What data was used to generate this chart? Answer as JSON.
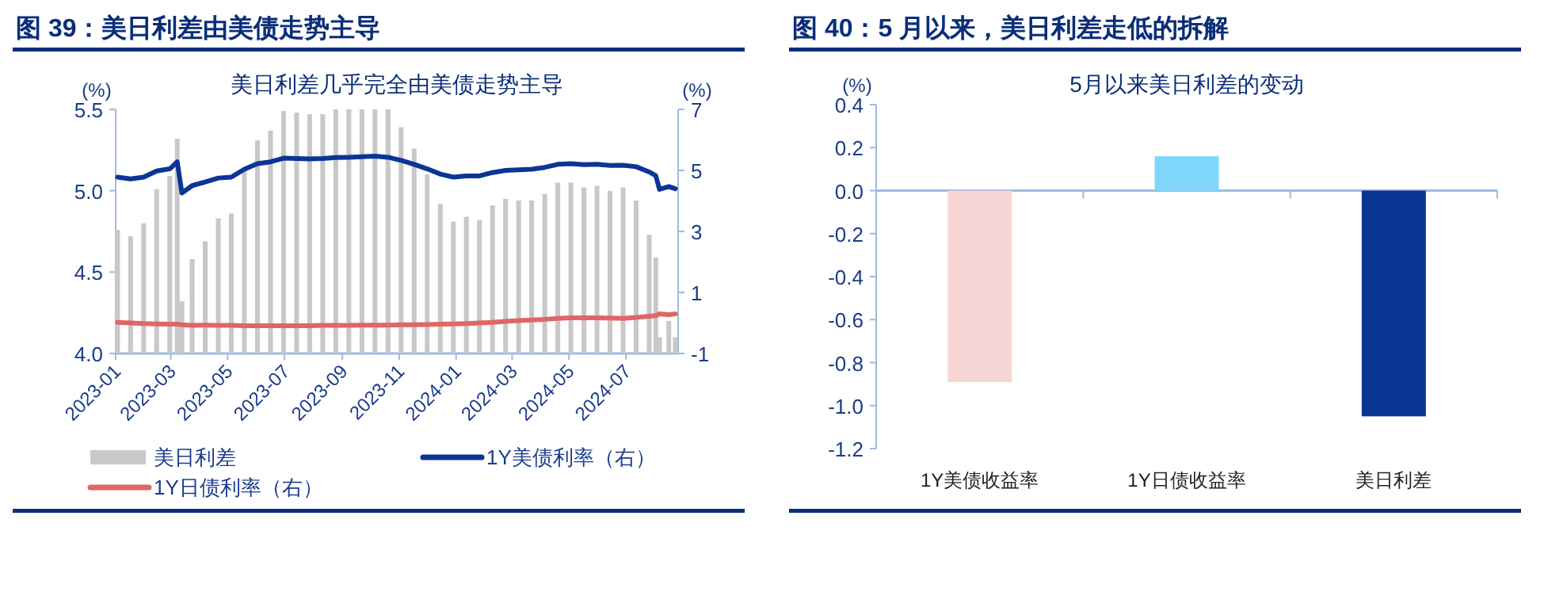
{
  "chart_data": [
    {
      "type": "bar",
      "title": "图 39：美日利差由美债走势主导",
      "subtitle": "美日利差几乎完全由美债走势主导",
      "ylabel": "(%)",
      "y2label": "(%)",
      "legend": "bottom",
      "xlim": [
        "2023-01-01",
        "2024-08-26"
      ],
      "xticks": [
        {
          "value": "2023-01-01",
          "label": "2023-01"
        },
        {
          "value": "2023-03-01",
          "label": "2023-03"
        },
        {
          "value": "2023-05-01",
          "label": "2023-05"
        },
        {
          "value": "2023-07-01",
          "label": "2023-07"
        },
        {
          "value": "2023-09-01",
          "label": "2023-09"
        },
        {
          "value": "2023-11-01",
          "label": "2023-11"
        },
        {
          "value": "2024-01-01",
          "label": "2024-01"
        },
        {
          "value": "2024-03-01",
          "label": "2024-03"
        },
        {
          "value": "2024-05-01",
          "label": "2024-05"
        },
        {
          "value": "2024-07-01",
          "label": "2024-07"
        }
      ],
      "ylim": [
        4.0,
        5.5
      ],
      "yticks": [
        {
          "value": 4.0,
          "label": "4.0"
        },
        {
          "value": 4.5,
          "label": "4.5"
        },
        {
          "value": 5.0,
          "label": "5.0"
        },
        {
          "value": 5.5,
          "label": "5.5"
        }
      ],
      "y2lim": [
        -1,
        7
      ],
      "y2ticks": [
        -1,
        1,
        3,
        5,
        7
      ],
      "x": [
        "2023-01-03",
        "2023-01-17",
        "2023-01-31",
        "2023-02-14",
        "2023-02-28",
        "2023-03-08",
        "2023-03-13",
        "2023-03-24",
        "2023-04-07",
        "2023-04-21",
        "2023-05-05",
        "2023-05-19",
        "2023-06-02",
        "2023-06-16",
        "2023-06-30",
        "2023-07-14",
        "2023-07-28",
        "2023-08-11",
        "2023-08-25",
        "2023-09-08",
        "2023-09-22",
        "2023-10-06",
        "2023-10-20",
        "2023-11-03",
        "2023-11-17",
        "2023-12-01",
        "2023-12-15",
        "2023-12-29",
        "2024-01-12",
        "2024-01-26",
        "2024-02-09",
        "2024-02-23",
        "2024-03-08",
        "2024-03-22",
        "2024-04-05",
        "2024-04-19",
        "2024-05-03",
        "2024-05-17",
        "2024-05-31",
        "2024-06-14",
        "2024-06-28",
        "2024-07-12",
        "2024-07-26",
        "2024-08-02",
        "2024-08-06",
        "2024-08-16",
        "2024-08-23"
      ],
      "series": [
        {
          "name": "美日利差",
          "color": "#c8c8c8",
          "values": [
            4.76,
            4.72,
            4.8,
            5.01,
            5.09,
            5.32,
            4.32,
            4.58,
            4.69,
            4.83,
            4.86,
            5.13,
            5.31,
            5.37,
            5.49,
            5.48,
            5.47,
            5.47,
            5.5,
            5.5,
            5.5,
            5.5,
            5.5,
            5.39,
            5.26,
            5.1,
            4.92,
            4.81,
            4.84,
            4.82,
            4.91,
            4.95,
            4.94,
            4.94,
            4.98,
            5.05,
            5.05,
            5.02,
            5.03,
            5.0,
            5.02,
            4.94,
            4.73,
            4.59,
            4.1,
            4.2,
            4.1
          ]
        },
        {
          "name": "1Y美债利率（右）",
          "type": "line",
          "axis": "y2",
          "color": "#0b3595",
          "values": [
            4.78,
            4.72,
            4.78,
            4.98,
            5.05,
            5.28,
            4.26,
            4.5,
            4.62,
            4.75,
            4.78,
            5.04,
            5.22,
            5.28,
            5.4,
            5.39,
            5.38,
            5.39,
            5.42,
            5.43,
            5.45,
            5.47,
            5.43,
            5.33,
            5.2,
            5.05,
            4.88,
            4.78,
            4.82,
            4.82,
            4.93,
            5.0,
            5.02,
            5.04,
            5.1,
            5.2,
            5.22,
            5.19,
            5.2,
            5.16,
            5.17,
            5.12,
            4.95,
            4.83,
            4.38,
            4.47,
            4.4
          ]
        },
        {
          "name": "1Y日债利率（右）",
          "type": "line",
          "axis": "y2",
          "color": "#e06666",
          "values": [
            0.02,
            0.0,
            -0.02,
            -0.03,
            -0.04,
            -0.04,
            -0.06,
            -0.08,
            -0.07,
            -0.08,
            -0.08,
            -0.09,
            -0.09,
            -0.09,
            -0.09,
            -0.09,
            -0.09,
            -0.08,
            -0.08,
            -0.08,
            -0.07,
            -0.07,
            -0.07,
            -0.06,
            -0.06,
            -0.05,
            -0.04,
            -0.03,
            -0.02,
            0.0,
            0.02,
            0.05,
            0.08,
            0.1,
            0.12,
            0.15,
            0.17,
            0.17,
            0.17,
            0.16,
            0.15,
            0.18,
            0.22,
            0.24,
            0.3,
            0.27,
            0.3
          ]
        }
      ]
    },
    {
      "type": "bar",
      "title": "图 40：5 月以来，美日利差走低的拆解",
      "subtitle": "5月以来美日利差的变动",
      "ylabel": "(%)",
      "categories": [
        "1Y美债收益率",
        "1Y日债收益率",
        "美日利差"
      ],
      "values": [
        -0.89,
        0.16,
        -1.05
      ],
      "ref_lines": [
        {
          "axis": "y",
          "value": 0,
          "color": "#9dbbe3"
        }
      ],
      "colors": [
        "#f6d5d5",
        "#7fd8fc",
        "#0b3595"
      ],
      "ylim": [
        -1.2,
        0.4
      ],
      "yticks": [
        {
          "value": 0.4,
          "label": "0.4"
        },
        {
          "value": 0.2,
          "label": "0.2"
        },
        {
          "value": 0.0,
          "label": "0.0"
        },
        {
          "value": -0.2,
          "label": "-0.2"
        },
        {
          "value": -0.4,
          "label": "-0.4"
        },
        {
          "value": -0.6,
          "label": "-0.6"
        },
        {
          "value": -0.8,
          "label": "-0.8"
        },
        {
          "value": -1.0,
          "label": "-1.0"
        },
        {
          "value": -1.2,
          "label": "-1.2"
        }
      ]
    }
  ]
}
